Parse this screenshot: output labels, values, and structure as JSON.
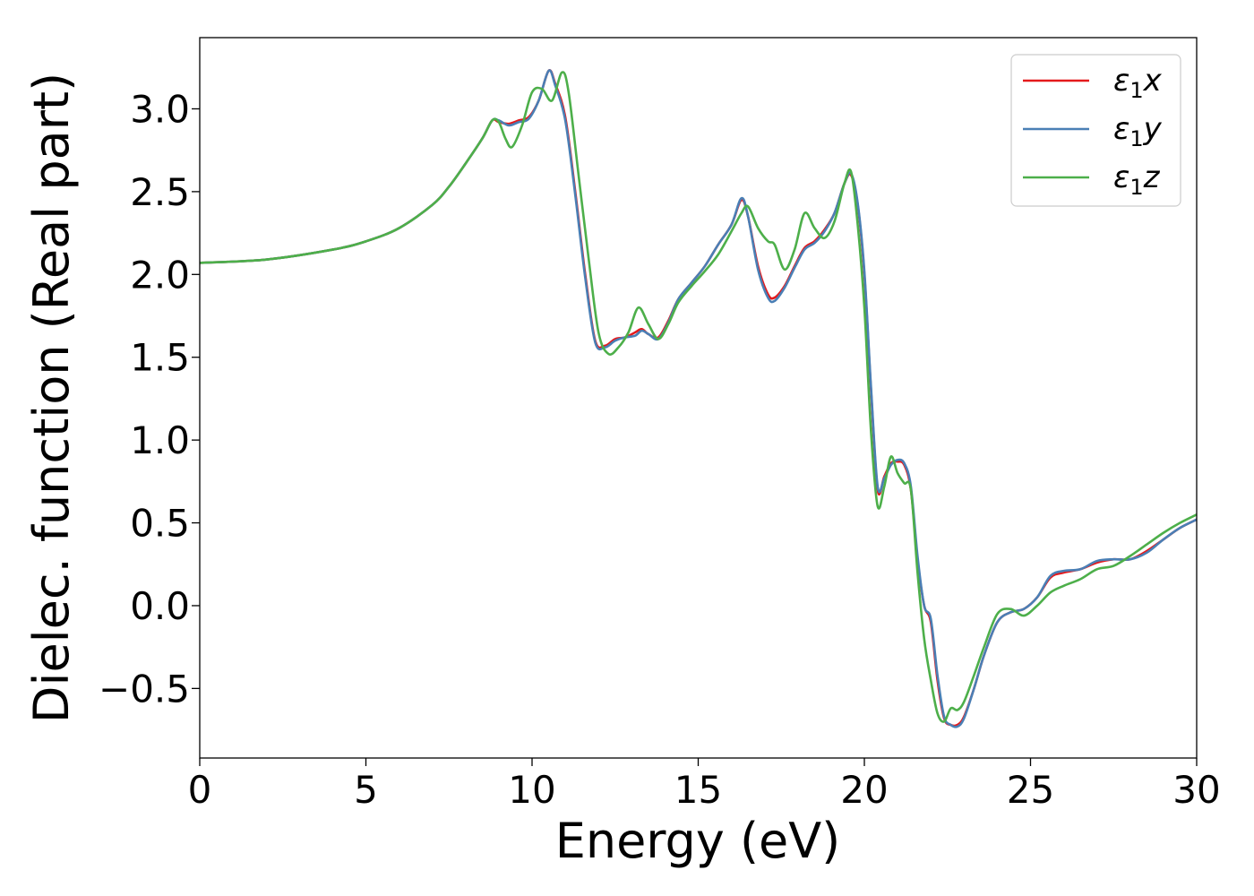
{
  "chart_data": {
    "type": "line",
    "xlabel": "Energy (eV)",
    "ylabel": "Dielec. function (Real part)",
    "xlim": [
      0,
      30
    ],
    "ylim": [
      -0.92,
      3.43
    ],
    "xticks": [
      0,
      5,
      10,
      15,
      20,
      25,
      30
    ],
    "xtick_labels": [
      "0",
      "5",
      "10",
      "15",
      "20",
      "25",
      "30"
    ],
    "yticks": [
      -0.5,
      0.0,
      0.5,
      1.0,
      1.5,
      2.0,
      2.5,
      3.0
    ],
    "ytick_labels": [
      "−0.5",
      "0.0",
      "0.5",
      "1.0",
      "1.5",
      "2.0",
      "2.5",
      "3.0"
    ],
    "grid": false,
    "legend_position": "top-right",
    "series": [
      {
        "name": "ε1x",
        "legend_base": "ε",
        "legend_sub": "1",
        "legend_tail": "x",
        "color": "#e41a1c",
        "x": [
          0,
          2,
          4,
          5,
          6,
          7,
          7.5,
          8,
          8.5,
          8.8,
          9.0,
          9.3,
          9.6,
          9.9,
          10.2,
          10.5,
          10.7,
          11.0,
          11.3,
          11.6,
          11.9,
          12.2,
          12.5,
          12.8,
          13.1,
          13.3,
          13.5,
          13.8,
          14.1,
          14.4,
          14.8,
          15.2,
          15.6,
          16.0,
          16.3,
          16.5,
          16.8,
          17.1,
          17.3,
          17.6,
          17.9,
          18.2,
          18.5,
          18.8,
          19.1,
          19.4,
          19.6,
          19.8,
          20.0,
          20.2,
          20.4,
          20.6,
          20.8,
          21.0,
          21.2,
          21.4,
          21.6,
          21.8,
          22.0,
          22.2,
          22.4,
          22.6,
          22.8,
          23.0,
          23.3,
          23.6,
          24.0,
          24.4,
          24.8,
          25.2,
          25.6,
          26.0,
          26.5,
          27.0,
          27.5,
          28.0,
          28.5,
          29.0,
          29.5,
          30.0
        ],
        "y": [
          2.07,
          2.09,
          2.15,
          2.2,
          2.28,
          2.42,
          2.53,
          2.67,
          2.82,
          2.93,
          2.92,
          2.91,
          2.93,
          2.95,
          3.05,
          3.23,
          3.15,
          2.95,
          2.5,
          2.0,
          1.6,
          1.57,
          1.61,
          1.62,
          1.65,
          1.67,
          1.64,
          1.62,
          1.72,
          1.85,
          1.95,
          2.05,
          2.18,
          2.3,
          2.45,
          2.35,
          2.05,
          1.88,
          1.86,
          1.93,
          2.05,
          2.16,
          2.2,
          2.27,
          2.37,
          2.55,
          2.6,
          2.42,
          2.0,
          1.3,
          0.7,
          0.78,
          0.86,
          0.87,
          0.85,
          0.7,
          0.28,
          0.0,
          -0.1,
          -0.45,
          -0.68,
          -0.72,
          -0.72,
          -0.67,
          -0.5,
          -0.3,
          -0.1,
          -0.04,
          -0.02,
          0.05,
          0.17,
          0.2,
          0.22,
          0.26,
          0.28,
          0.28,
          0.33,
          0.4,
          0.47,
          0.52
        ]
      },
      {
        "name": "ε1y",
        "legend_base": "ε",
        "legend_sub": "1",
        "legend_tail": "y",
        "color": "#4a7fb5",
        "x": [
          0,
          2,
          4,
          5,
          6,
          7,
          7.5,
          8,
          8.5,
          8.8,
          9.0,
          9.3,
          9.6,
          9.9,
          10.2,
          10.5,
          10.7,
          11.0,
          11.3,
          11.6,
          11.9,
          12.2,
          12.5,
          12.8,
          13.1,
          13.3,
          13.5,
          13.8,
          14.1,
          14.4,
          14.8,
          15.2,
          15.6,
          16.0,
          16.3,
          16.5,
          16.8,
          17.1,
          17.3,
          17.6,
          17.9,
          18.2,
          18.5,
          18.8,
          19.1,
          19.4,
          19.6,
          19.8,
          20.0,
          20.2,
          20.4,
          20.6,
          20.8,
          21.0,
          21.2,
          21.4,
          21.6,
          21.8,
          22.0,
          22.2,
          22.4,
          22.6,
          22.8,
          23.0,
          23.3,
          23.6,
          24.0,
          24.4,
          24.8,
          25.2,
          25.6,
          26.0,
          26.5,
          27.0,
          27.5,
          28.0,
          28.5,
          29.0,
          29.5,
          30.0
        ],
        "y": [
          2.07,
          2.09,
          2.15,
          2.2,
          2.28,
          2.42,
          2.53,
          2.67,
          2.82,
          2.93,
          2.93,
          2.9,
          2.92,
          2.94,
          3.05,
          3.23,
          3.14,
          2.93,
          2.48,
          1.98,
          1.59,
          1.56,
          1.6,
          1.62,
          1.63,
          1.66,
          1.64,
          1.61,
          1.71,
          1.85,
          1.95,
          2.05,
          2.18,
          2.3,
          2.46,
          2.35,
          2.03,
          1.86,
          1.84,
          1.92,
          2.04,
          2.15,
          2.19,
          2.26,
          2.37,
          2.55,
          2.61,
          2.43,
          2.02,
          1.32,
          0.72,
          0.77,
          0.85,
          0.88,
          0.86,
          0.72,
          0.3,
          0.0,
          -0.08,
          -0.42,
          -0.67,
          -0.72,
          -0.73,
          -0.68,
          -0.5,
          -0.3,
          -0.1,
          -0.04,
          -0.02,
          0.05,
          0.18,
          0.21,
          0.22,
          0.27,
          0.28,
          0.28,
          0.32,
          0.4,
          0.47,
          0.52
        ]
      },
      {
        "name": "ε1z",
        "legend_base": "ε",
        "legend_sub": "1",
        "legend_tail": "z",
        "color": "#4daf4a",
        "x": [
          0,
          2,
          4,
          5,
          6,
          7,
          7.5,
          8,
          8.5,
          8.8,
          9.0,
          9.2,
          9.4,
          9.7,
          10.0,
          10.3,
          10.6,
          10.9,
          11.1,
          11.4,
          11.7,
          12.0,
          12.3,
          12.6,
          12.9,
          13.2,
          13.5,
          13.8,
          14.1,
          14.4,
          14.8,
          15.2,
          15.6,
          16.0,
          16.3,
          16.5,
          16.8,
          17.1,
          17.3,
          17.6,
          17.9,
          18.2,
          18.5,
          18.8,
          19.1,
          19.4,
          19.6,
          19.8,
          20.0,
          20.2,
          20.4,
          20.6,
          20.8,
          21.0,
          21.2,
          21.4,
          21.6,
          21.8,
          22.0,
          22.2,
          22.4,
          22.6,
          22.8,
          23.0,
          23.3,
          23.6,
          24.0,
          24.4,
          24.8,
          25.2,
          25.6,
          26.0,
          26.5,
          27.0,
          27.5,
          28.0,
          28.5,
          29.0,
          29.5,
          30.0
        ],
        "y": [
          2.07,
          2.09,
          2.15,
          2.2,
          2.28,
          2.42,
          2.53,
          2.67,
          2.82,
          2.93,
          2.92,
          2.82,
          2.77,
          2.9,
          3.1,
          3.12,
          3.05,
          3.22,
          3.1,
          2.6,
          2.1,
          1.65,
          1.52,
          1.56,
          1.65,
          1.8,
          1.7,
          1.61,
          1.7,
          1.83,
          1.93,
          2.02,
          2.12,
          2.26,
          2.37,
          2.41,
          2.28,
          2.2,
          2.18,
          2.03,
          2.15,
          2.37,
          2.28,
          2.22,
          2.32,
          2.55,
          2.62,
          2.3,
          1.8,
          1.05,
          0.6,
          0.72,
          0.9,
          0.8,
          0.74,
          0.7,
          0.2,
          -0.2,
          -0.45,
          -0.65,
          -0.7,
          -0.62,
          -0.63,
          -0.58,
          -0.42,
          -0.25,
          -0.05,
          -0.02,
          -0.06,
          0.0,
          0.08,
          0.12,
          0.16,
          0.22,
          0.24,
          0.3,
          0.37,
          0.44,
          0.5,
          0.55
        ]
      }
    ]
  }
}
